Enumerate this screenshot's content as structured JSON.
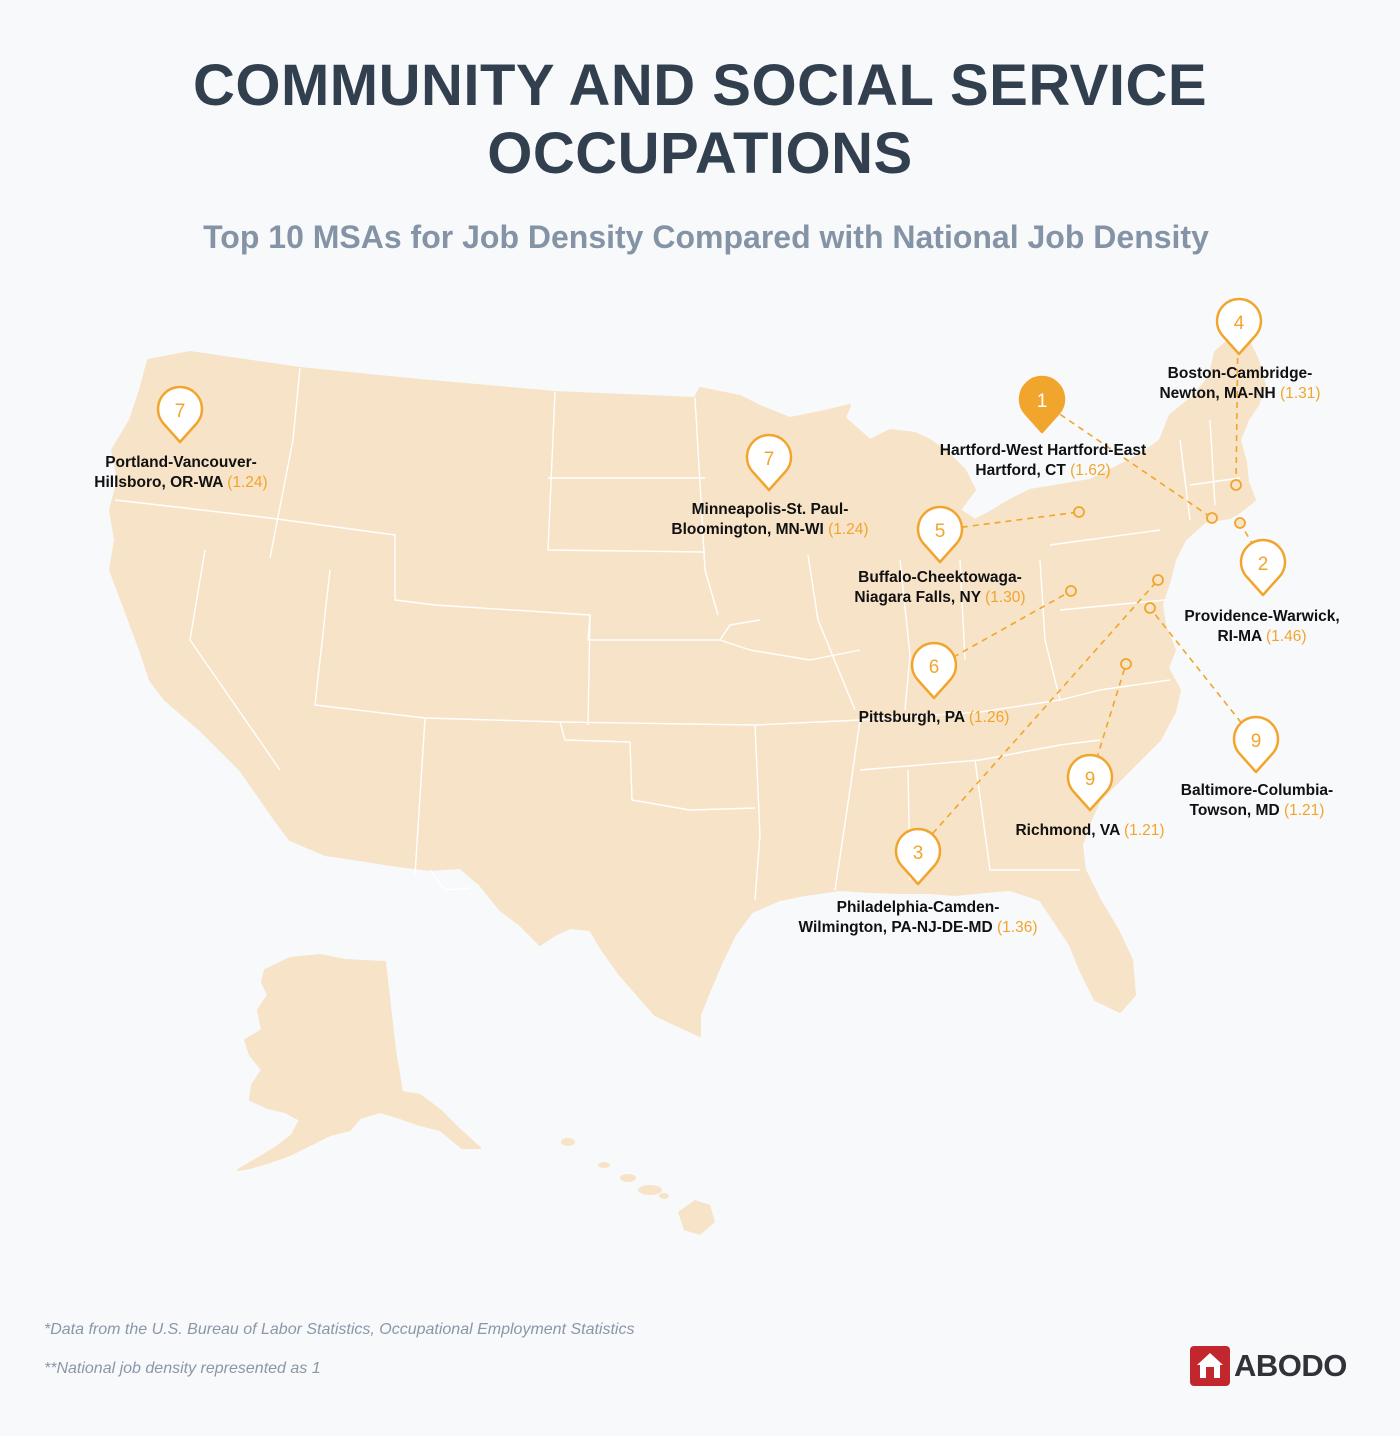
{
  "title": {
    "line1": "COMMUNITY AND SOCIAL SERVICE",
    "line2": "OCCUPATIONS"
  },
  "subtitle": "Top 10 MSAs for Job Density Compared with National Job Density",
  "colors": {
    "land": "#f7e3c7",
    "marker": "#f2a52d",
    "title": "#323f4e",
    "subtitle": "#8494a6",
    "logo": "#c1272d"
  },
  "markers": [
    {
      "id": "hartford",
      "rank": "1",
      "filled": true,
      "line1": "Hartford-West Hartford-East",
      "line2": "Hartford, CT",
      "value": "(1.62)"
    },
    {
      "id": "providence",
      "rank": "2",
      "filled": false,
      "line1": "Providence-Warwick,",
      "line2": "RI-MA",
      "value": "(1.46)"
    },
    {
      "id": "philadelphia",
      "rank": "3",
      "filled": false,
      "line1": "Philadelphia-Camden-",
      "line2": "Wilmington, PA-NJ-DE-MD",
      "value": "(1.36)"
    },
    {
      "id": "boston",
      "rank": "4",
      "filled": false,
      "line1": "Boston-Cambridge-",
      "line2": "Newton, MA-NH",
      "value": "(1.31)"
    },
    {
      "id": "buffalo",
      "rank": "5",
      "filled": false,
      "line1": "Buffalo-Cheektowaga-",
      "line2": "Niagara Falls, NY",
      "value": "(1.30)"
    },
    {
      "id": "pittsburgh",
      "rank": "6",
      "filled": false,
      "line1": "",
      "line2": "Pittsburgh, PA",
      "value": "(1.26)"
    },
    {
      "id": "portland",
      "rank": "7",
      "filled": false,
      "line1": "Portland-Vancouver-",
      "line2": "Hillsboro, OR-WA",
      "value": "(1.24)"
    },
    {
      "id": "minneapolis",
      "rank": "7",
      "filled": false,
      "line1": "Minneapolis-St. Paul-",
      "line2": "Bloomington, MN-WI",
      "value": "(1.24)"
    },
    {
      "id": "richmond",
      "rank": "9",
      "filled": false,
      "line1": "",
      "line2": "Richmond, VA",
      "value": "(1.21)"
    },
    {
      "id": "baltimore",
      "rank": "9",
      "filled": false,
      "line1": "Baltimore-Columbia-",
      "line2": "Towson, MD",
      "value": "(1.21)"
    }
  ],
  "footnotes": {
    "source": "*Data from the U.S. Bureau of Labor Statistics, Occupational Employment Statistics",
    "note": "**National job density represented as 1"
  },
  "logo": {
    "text": "ABODO",
    "icon": "house-icon"
  }
}
